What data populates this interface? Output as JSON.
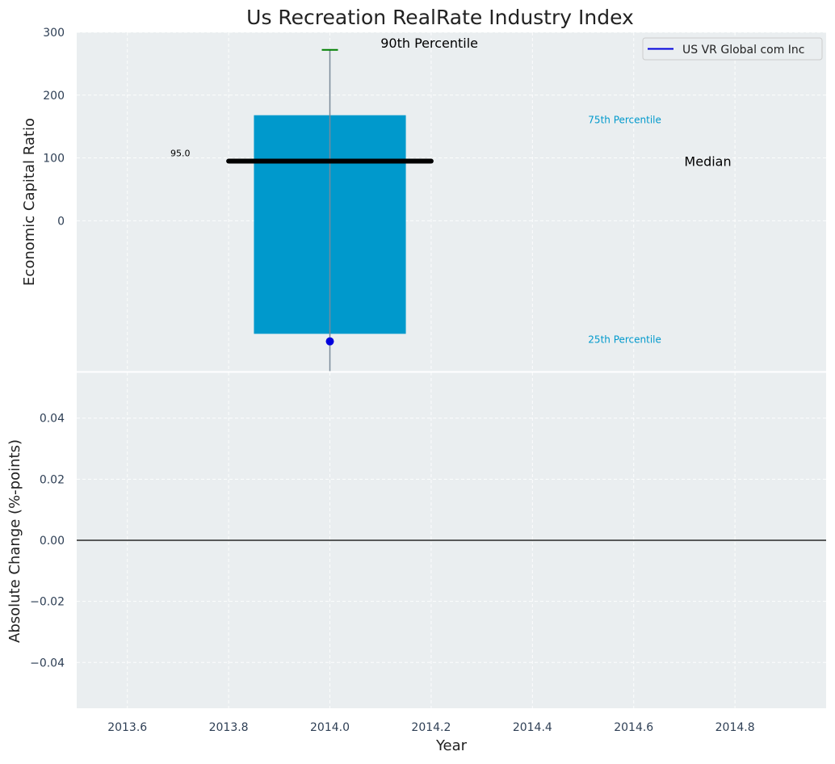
{
  "chart_data": [
    {
      "type": "box",
      "title": "Us Recreation RealRate Industry Index",
      "xlabel": "",
      "ylabel": "Economic Capital Ratio",
      "xlim": [
        2013.5,
        2014.98
      ],
      "ylim": [
        -240,
        300
      ],
      "yticks": [
        0,
        100,
        200,
        300
      ],
      "ytick_labels": [
        "0",
        "100",
        "200",
        "300"
      ],
      "grid": true,
      "box": {
        "x": 2014.0,
        "width": 0.3,
        "q25": -180,
        "q75": 168,
        "median": 95.0,
        "p90": 272,
        "whisker_low": -240,
        "color": "#0099cc"
      },
      "series": [
        {
          "name": "US VR Global com Inc",
          "x": [
            2014.0
          ],
          "values": [
            -192
          ],
          "color": "#0000dd"
        }
      ],
      "median_line": {
        "x_start": 2013.8,
        "x_end": 2014.2,
        "y": 95.0
      },
      "annotations": {
        "p90_label": "90th Percentile",
        "p75_label": "75th Percentile",
        "p25_label": "25th Percentile",
        "median_label": "Median",
        "median_value_label": "95.0"
      },
      "legend": {
        "entries": [
          "US VR Global com Inc"
        ],
        "position": "top-right"
      }
    },
    {
      "type": "line",
      "title": "",
      "xlabel": "Year",
      "ylabel": "Absolute Change (%-points)",
      "xlim": [
        2013.5,
        2014.98
      ],
      "ylim": [
        -0.055,
        0.055
      ],
      "xticks": [
        2013.6,
        2013.8,
        2014.0,
        2014.2,
        2014.4,
        2014.6,
        2014.8
      ],
      "xtick_labels": [
        "2013.6",
        "2013.8",
        "2014.0",
        "2014.2",
        "2014.4",
        "2014.6",
        "2014.8"
      ],
      "yticks": [
        -0.04,
        -0.02,
        0.0,
        0.02,
        0.04
      ],
      "ytick_labels": [
        "−0.04",
        "−0.02",
        "0.00",
        "0.02",
        "0.04"
      ],
      "reference_line_y": 0.0,
      "grid": true,
      "series": []
    }
  ]
}
